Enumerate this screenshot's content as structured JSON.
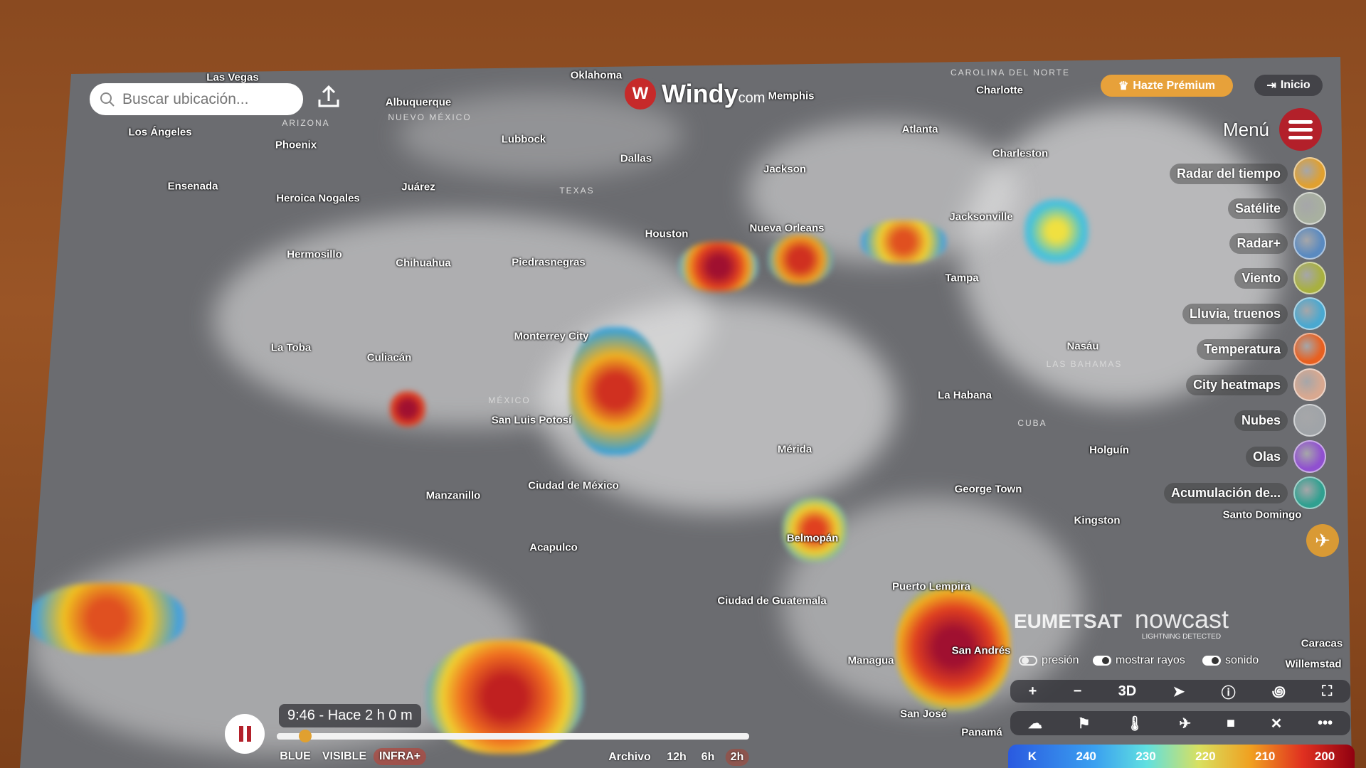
{
  "search": {
    "placeholder": "Buscar ubicación..."
  },
  "logo": {
    "text": "Windy",
    "suffix": "com"
  },
  "header": {
    "premium_label": "Hazte Prémium",
    "login_label": "Inicio"
  },
  "menu": {
    "label": "Menú"
  },
  "layers": [
    {
      "label": "Radar del tiempo",
      "color": "#e0a030"
    },
    {
      "label": "Satélite",
      "color": "#a8b0a0"
    },
    {
      "label": "Radar+",
      "color": "#5a8ac0"
    },
    {
      "label": "Viento",
      "color": "#a8b040"
    },
    {
      "label": "Lluvia, truenos",
      "color": "#4aa8d0"
    },
    {
      "label": "Temperatura",
      "color": "#e86020"
    },
    {
      "label": "City heatmaps",
      "color": "#d8a890"
    },
    {
      "label": "Nubes",
      "color": "#a0a4a8"
    },
    {
      "label": "Olas",
      "color": "#9050d0"
    },
    {
      "label": "Acumulación de...",
      "color": "#30a090"
    }
  ],
  "map": {
    "cities": [
      "Las Vegas",
      "Los Ángeles",
      "Phoenix",
      "Albuquerque",
      "Lubbock",
      "Dallas",
      "Ensenada",
      "Juárez",
      "Heroica Nogales",
      "Hermosillo",
      "Chihuahua",
      "Piedrasnegras",
      "Houston",
      "Nueva Orleans",
      "Memphis",
      "Atlanta",
      "Charlotte",
      "Charleston",
      "Jackson",
      "Jacksonville",
      "Tampa",
      "Monterrey City",
      "La Toba",
      "Culiacán",
      "San Luis Potosí",
      "Mérida",
      "La Habana",
      "Holguín",
      "Nasáu",
      "George Town",
      "Kingston",
      "Santo Domingo",
      "Manzanillo",
      "Ciudad de México",
      "Acapulco",
      "Belmopán",
      "Ciudad de Guatemala",
      "Puerto Lempira",
      "San Andrés",
      "Managua",
      "San José",
      "Panamá",
      "Willemstad",
      "Caracas",
      "Oklahoma"
    ],
    "regions": [
      "ARIZONA",
      "NUEVO MÉXICO",
      "TEXAS",
      "MÉXICO",
      "CUBA",
      "LAS BAHAMAS",
      "CAROLINA DEL NORTE"
    ]
  },
  "provider": {
    "eumetsat": "EUMETSAT",
    "nowcast": "nowcast",
    "nowcast_sub": "LIGHTNING DETECTED"
  },
  "toggles": [
    {
      "label": "presión",
      "on": false
    },
    {
      "label": "mostrar rayos",
      "on": true
    },
    {
      "label": "sonido",
      "on": true
    }
  ],
  "controls": {
    "zoom_in": "+",
    "zoom_out": "−",
    "three_d": "3D",
    "more": "•••"
  },
  "timeline": {
    "time_label": "9:46 - Hace 2 h 0 m",
    "progress": 0.06,
    "bands": [
      "BLUE",
      "VISIBLE",
      "INFRA+"
    ],
    "active_band": "INFRA+",
    "archive_label": "Archivo",
    "ranges": [
      "12h",
      "6h",
      "2h"
    ],
    "active_range": "2h"
  },
  "legend": {
    "unit": "K",
    "ticks": [
      "240",
      "230",
      "220",
      "210",
      "200"
    ]
  }
}
